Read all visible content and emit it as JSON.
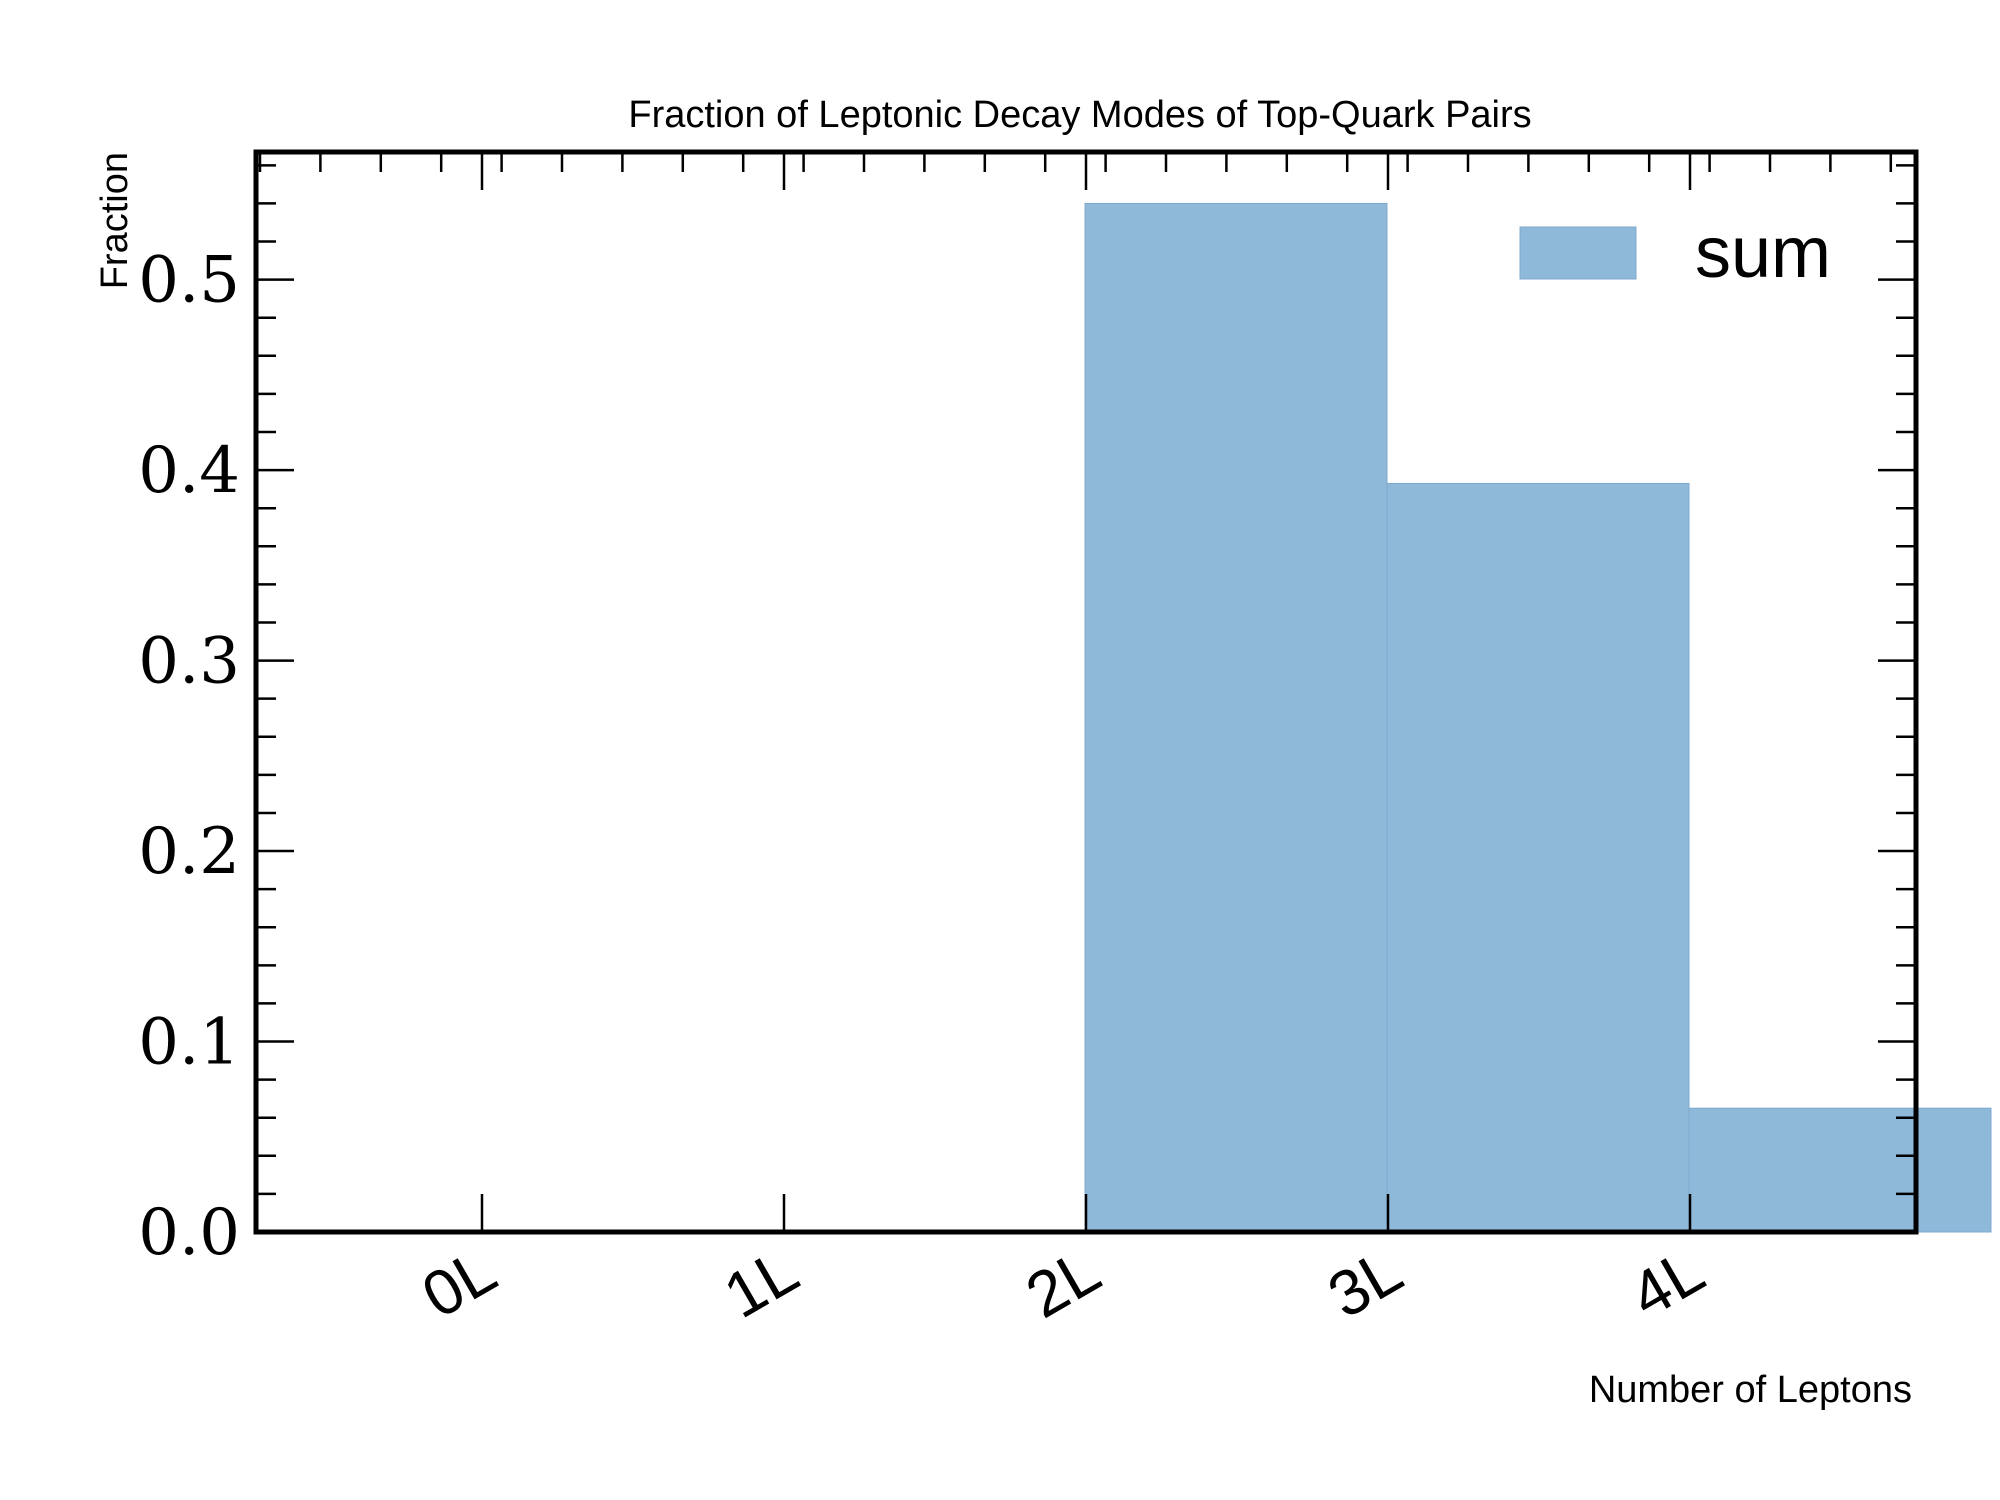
{
  "chart_data": {
    "type": "bar",
    "title": "Fraction of Leptonic Decay Modes of Top-Quark Pairs",
    "xlabel": "Number of Leptons",
    "ylabel": "Fraction",
    "categories": [
      "0L",
      "1L",
      "2L",
      "3L",
      "4L"
    ],
    "series": [
      {
        "name": "sum",
        "values": [
          0.0,
          0.0,
          0.54,
          0.393,
          0.065
        ],
        "color": "#8fb9d9"
      }
    ],
    "ylim": [
      0,
      0.567
    ],
    "y_ticks": [
      "0.0",
      "0.1",
      "0.2",
      "0.3",
      "0.4",
      "0.5"
    ],
    "legend_position": "top-right",
    "grid": false,
    "x_tick_rotation": "30 degrees"
  }
}
